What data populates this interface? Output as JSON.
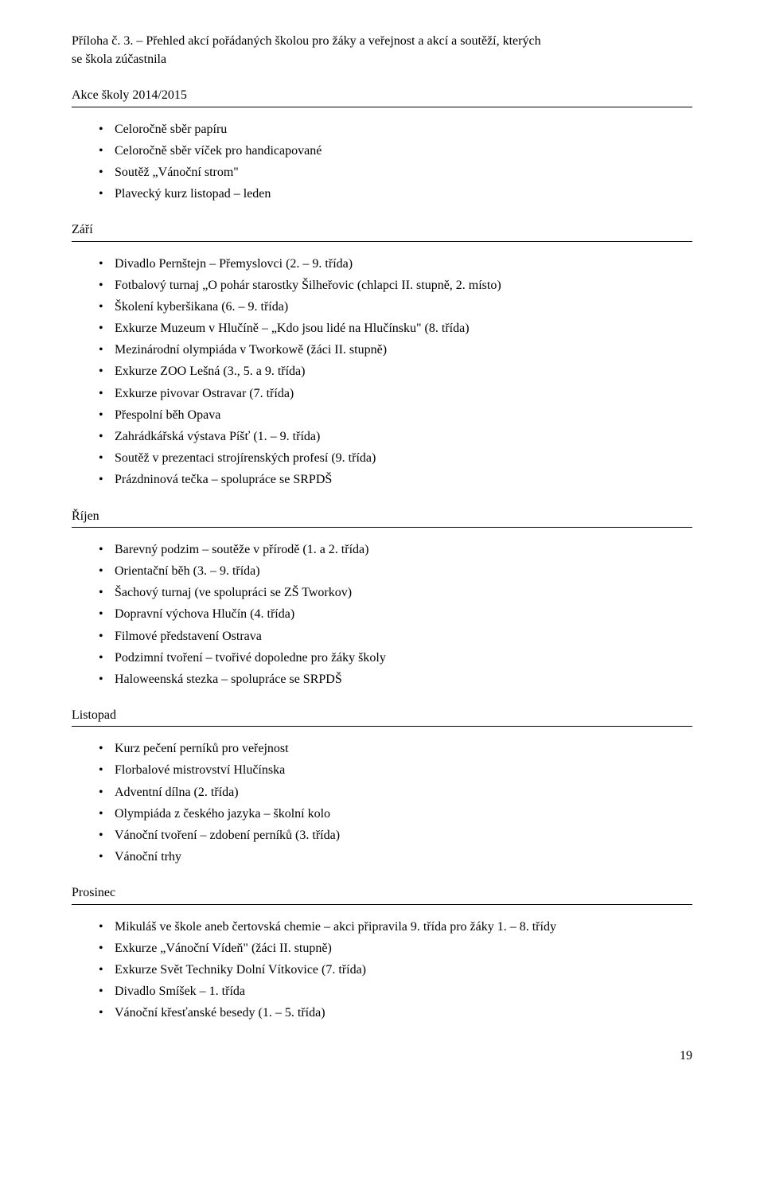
{
  "attachment_label": "Příloha č. 3. – Přehled akcí pořádaných školou pro žáky a veřejnost a akcí a soutěží, kterých",
  "attachment_label_line2": "se škola zúčastnila",
  "section_title": "Akce školy 2014/2015",
  "intro_items": [
    "Celoročně sběr papíru",
    "Celoročně sběr víček pro handicapované",
    "Soutěž „Vánoční strom\"",
    "Plavecký kurz listopad – leden"
  ],
  "months": [
    {
      "name": "Září",
      "items": [
        "Divadlo Pernštejn – Přemyslovci (2. – 9. třída)",
        "Fotbalový turnaj „O pohár starostky Šilheřovic (chlapci II. stupně, 2. místo)",
        "Školení kyberšikana (6. – 9. třída)",
        "Exkurze Muzeum v Hlučíně – „Kdo jsou lidé na Hlučínsku\" (8. třída)",
        "Mezinárodní olympiáda v Tworkowě (žáci II. stupně)",
        "Exkurze ZOO Lešná (3., 5. a 9. třída)",
        "Exkurze pivovar Ostravar (7. třída)",
        "Přespolní běh Opava",
        "Zahrádkářská výstava Píšť (1. – 9. třída)",
        "Soutěž v prezentaci strojírenských profesí (9. třída)",
        "Prázdninová tečka – spolupráce se SRPDŠ"
      ]
    },
    {
      "name": "Říjen",
      "items": [
        "Barevný podzim – soutěže v přírodě (1. a 2. třída)",
        "Orientační běh (3. – 9. třída)",
        "Šachový turnaj (ve spolupráci se ZŠ Tworkov)",
        "Dopravní výchova Hlučín (4. třída)",
        "Filmové představení Ostrava",
        "Podzimní tvoření – tvořivé dopoledne pro žáky školy",
        "Haloweenská stezka – spolupráce se SRPDŠ"
      ]
    },
    {
      "name": "Listopad",
      "items": [
        "Kurz pečení perníků pro veřejnost",
        "Florbalové mistrovství Hlučínska",
        "Adventní dílna (2. třída)",
        "Olympiáda z českého jazyka – školní kolo",
        "Vánoční tvoření – zdobení perníků (3. třída)",
        "Vánoční trhy"
      ]
    },
    {
      "name": "Prosinec",
      "items": [
        "Mikuláš ve škole aneb čertovská chemie – akci připravila 9. třída pro žáky 1. – 8. třídy",
        "Exkurze „Vánoční Vídeň\" (žáci II. stupně)",
        "Exkurze Svět Techniky Dolní Vítkovice (7. třída)",
        "Divadlo Smíšek – 1. třída",
        "Vánoční křesťanské besedy (1. – 5. třída)"
      ]
    }
  ],
  "page_number": "19"
}
